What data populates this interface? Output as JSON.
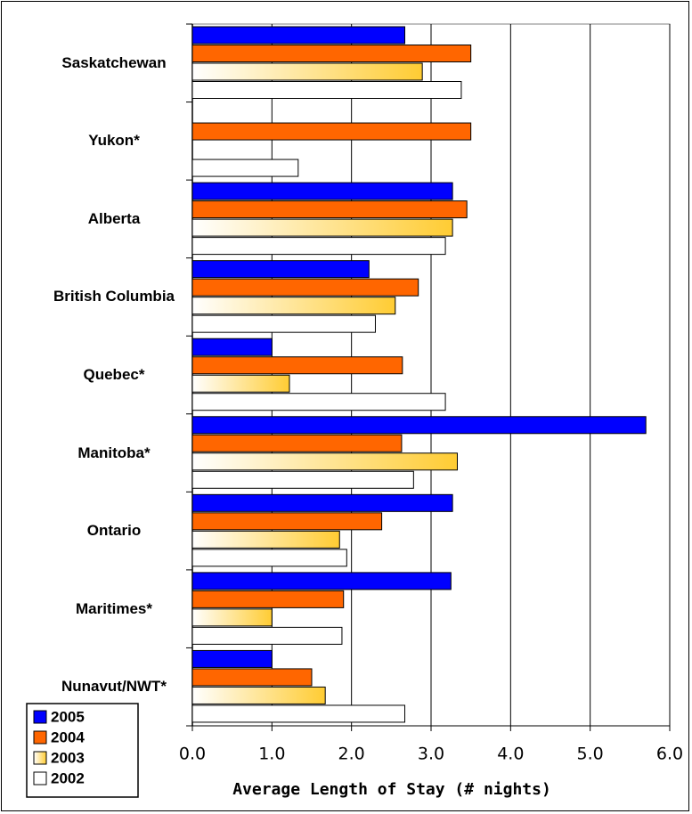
{
  "chart_data": {
    "type": "hbar",
    "xlabel": "Average Length of Stay (# nights)",
    "categories": [
      "Saskatchewan",
      "Yukon*",
      "Alberta",
      "British Columbia",
      "Quebec*",
      "Manitoba*",
      "Ontario",
      "Maritimes*",
      "Nunavut/NWT*"
    ],
    "series": [
      {
        "name": "2005",
        "color": "#0000ff",
        "values": [
          2.67,
          null,
          3.27,
          2.22,
          1.0,
          5.7,
          3.27,
          3.25,
          1.0
        ]
      },
      {
        "name": "2004",
        "color": "#ff6600",
        "values": [
          3.5,
          3.5,
          3.45,
          2.84,
          2.64,
          2.63,
          2.38,
          1.9,
          1.5
        ]
      },
      {
        "name": "2003",
        "color": "#ffcc33",
        "values": [
          2.89,
          null,
          3.27,
          2.55,
          1.22,
          3.33,
          1.85,
          1.0,
          1.67
        ]
      },
      {
        "name": "2002",
        "color": "#ffffff",
        "values": [
          3.38,
          1.33,
          3.18,
          2.3,
          3.18,
          2.78,
          1.94,
          1.88,
          2.67
        ]
      }
    ],
    "xlim": [
      0,
      6
    ],
    "xticks": [
      {
        "value": 0,
        "label": "0.0"
      },
      {
        "value": 1,
        "label": "1.0"
      },
      {
        "value": 2,
        "label": "2.0"
      },
      {
        "value": 3,
        "label": "3.0"
      },
      {
        "value": 4,
        "label": "4.0"
      },
      {
        "value": 5,
        "label": "5.0"
      },
      {
        "value": 6,
        "label": "6.0"
      }
    ],
    "grid": true,
    "legend": "bottom-left"
  }
}
